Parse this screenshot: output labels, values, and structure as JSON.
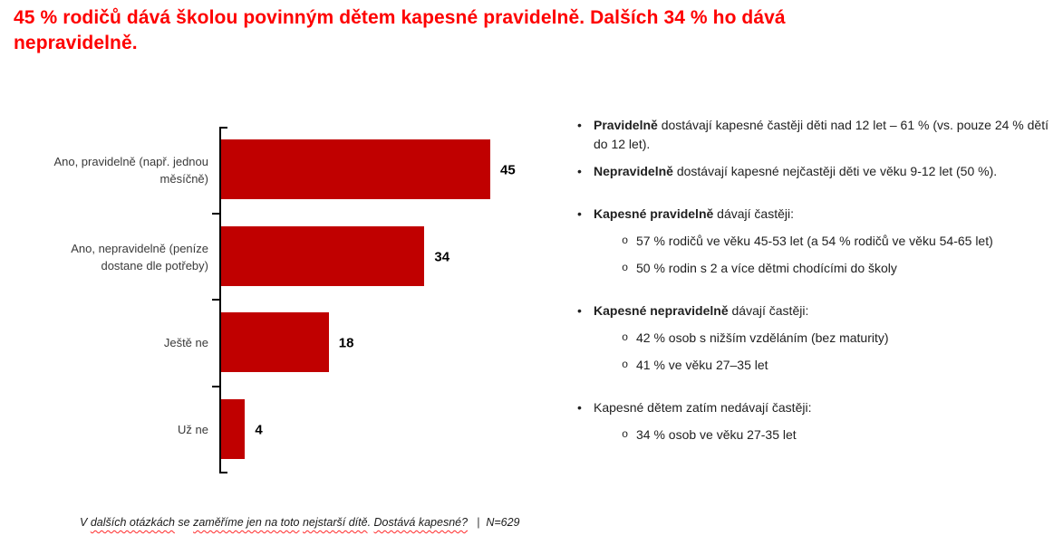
{
  "title": {
    "text": "45 % rodičů dává školou povinným dětem kapesné pravidelně. Dalších 34 % ho dává\nnepravidelně."
  },
  "chart_data": {
    "type": "bar",
    "orientation": "horizontal",
    "categories": [
      "Ano, pravidelně (např. jednou měsíčně)",
      "Ano, nepravidelně (peníze dostane dle potřeby)",
      "Ještě ne",
      "Už ne"
    ],
    "values": [
      45,
      34,
      18,
      4
    ],
    "data_labels": true,
    "legend": false,
    "grid": false,
    "xlim": [
      0,
      50
    ],
    "bar_color": "#c00000"
  },
  "insights": {
    "bullets": [
      {
        "level": 1,
        "bold": "Pravidelně",
        "text": " dostávají kapesné častěji děti nad 12 let – 61 % (vs. pouze 24 % dětí do 12 let).",
        "gap_before": false
      },
      {
        "level": 1,
        "bold": "Nepravidelně",
        "text": " dostávají kapesné nejčastěji děti ve věku 9-12 let (50 %).",
        "gap_before": false
      },
      {
        "level": 1,
        "bold": "Kapesné pravidelně",
        "text": " dávají častěji:",
        "gap_before": true
      },
      {
        "level": 2,
        "bold": "",
        "text": "57 % rodičů  ve věku 45-53 let (a 54 % rodičů ve věku 54-65 let)",
        "gap_before": false
      },
      {
        "level": 2,
        "bold": "",
        "text": "50 % rodin s 2 a více dětmi chodícími do školy",
        "gap_before": false
      },
      {
        "level": 1,
        "bold": "Kapesné nepravidelně",
        "text": " dávají častěji:",
        "gap_before": true
      },
      {
        "level": 2,
        "bold": "",
        "text": "42 % osob s nižším vzděláním (bez maturity)",
        "gap_before": false
      },
      {
        "level": 2,
        "bold": "",
        "text": "41 % ve věku 27–35 let",
        "gap_before": false
      },
      {
        "level": 1,
        "bold": "",
        "text": "Kapesné dětem zatím nedávají častěji:",
        "gap_before": true
      },
      {
        "level": 2,
        "bold": "",
        "text": "34 % osob ve věku 27-35 let",
        "gap_before": false
      }
    ],
    "bullet_glyph_level1": "•",
    "bullet_glyph_level2": "o"
  },
  "footer": {
    "note_segments": [
      {
        "text": "V ",
        "wavy": false
      },
      {
        "text": "dalších otázkách",
        "wavy": true
      },
      {
        "text": " se ",
        "wavy": false
      },
      {
        "text": "zaměříme jen na toto",
        "wavy": true
      },
      {
        "text": " ",
        "wavy": false
      },
      {
        "text": "nejstarší dítě",
        "wavy": true
      },
      {
        "text": ". ",
        "wavy": false
      },
      {
        "text": "Dostává kapesné?",
        "wavy": true
      }
    ],
    "separator": "|",
    "sample_size": "N=629"
  },
  "colors": {
    "title_red": "#fe0000",
    "bar_red": "#c00000",
    "spellcheck_red": "#ff2a2a",
    "text_dark": "#212121",
    "axis_black": "#000000"
  }
}
